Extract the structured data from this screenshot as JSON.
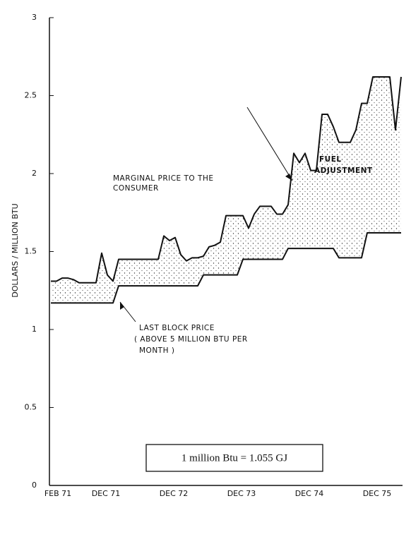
{
  "chart_data": {
    "type": "line",
    "ylabel": "DOLLARS / MILLION BTU",
    "categories": [
      "FEB 71",
      null,
      null,
      null,
      null,
      null,
      null,
      null,
      null,
      null,
      "DEC 71",
      null,
      null,
      null,
      null,
      null,
      null,
      null,
      null,
      null,
      null,
      null,
      "DEC 72",
      null,
      null,
      null,
      null,
      null,
      null,
      null,
      null,
      null,
      null,
      null,
      "DEC 73",
      null,
      null,
      null,
      null,
      null,
      null,
      null,
      null,
      null,
      null,
      null,
      "DEC 74",
      null,
      null,
      null,
      null,
      null,
      null,
      null,
      null,
      null,
      null,
      null,
      "DEC 75",
      null,
      null,
      null,
      null
    ],
    "series": [
      {
        "color": "#111111",
        "values": [
          1.31,
          1.31,
          1.33,
          1.33,
          1.32,
          1.3,
          1.3,
          1.3,
          1.3,
          1.49,
          1.35,
          1.31,
          1.45,
          1.45,
          1.45,
          1.45,
          1.45,
          1.45,
          1.45,
          1.45,
          1.6,
          1.57,
          1.59,
          1.48,
          1.44,
          1.46,
          1.46,
          1.47,
          1.53,
          1.54,
          1.56,
          1.73,
          1.73,
          1.73,
          1.73,
          1.65,
          1.74,
          1.79,
          1.79,
          1.79,
          1.74,
          1.74,
          1.8,
          2.13,
          2.07,
          2.13,
          2.02,
          2.02,
          2.38,
          2.38,
          2.3,
          2.2,
          2.2,
          2.2,
          2.28,
          2.45,
          2.45,
          2.62,
          2.62,
          2.62,
          2.62,
          2.28,
          2.62
        ]
      },
      {
        "color": "#111111",
        "values": [
          1.17,
          1.17,
          1.17,
          1.17,
          1.17,
          1.17,
          1.17,
          1.17,
          1.17,
          1.17,
          1.17,
          1.17,
          1.28,
          1.28,
          1.28,
          1.28,
          1.28,
          1.28,
          1.28,
          1.28,
          1.28,
          1.28,
          1.28,
          1.28,
          1.28,
          1.28,
          1.28,
          1.35,
          1.35,
          1.35,
          1.35,
          1.35,
          1.35,
          1.35,
          1.45,
          1.45,
          1.45,
          1.45,
          1.45,
          1.45,
          1.45,
          1.45,
          1.52,
          1.52,
          1.52,
          1.52,
          1.52,
          1.52,
          1.52,
          1.52,
          1.52,
          1.46,
          1.46,
          1.46,
          1.46,
          1.46,
          1.62,
          1.62,
          1.62,
          1.62,
          1.62,
          1.62,
          1.62
        ]
      }
    ],
    "fill_between": true,
    "ylim": [
      0,
      3
    ],
    "yticks": [
      0,
      0.5,
      1,
      1.5,
      2,
      2.5,
      3
    ],
    "annotations": {
      "marginal": [
        "MARGINAL PRICE TO THE",
        "CONSUMER"
      ],
      "fuel": [
        "FUEL",
        "ADJUSTMENT"
      ],
      "last_block": [
        "LAST BLOCK PRICE",
        "( ABOVE 5 MILLION BTU  PER",
        "MONTH )"
      ],
      "conversion": "1 million Btu = 1.055 GJ"
    }
  }
}
